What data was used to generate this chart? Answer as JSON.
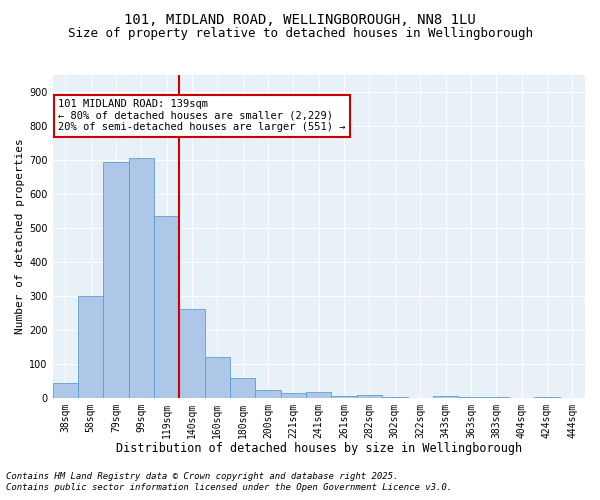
{
  "title_line1": "101, MIDLAND ROAD, WELLINGBOROUGH, NN8 1LU",
  "title_line2": "Size of property relative to detached houses in Wellingborough",
  "xlabel": "Distribution of detached houses by size in Wellingborough",
  "ylabel": "Number of detached properties",
  "categories": [
    "38sqm",
    "58sqm",
    "79sqm",
    "99sqm",
    "119sqm",
    "140sqm",
    "160sqm",
    "180sqm",
    "200sqm",
    "221sqm",
    "241sqm",
    "261sqm",
    "282sqm",
    "302sqm",
    "322sqm",
    "343sqm",
    "363sqm",
    "383sqm",
    "404sqm",
    "424sqm",
    "444sqm"
  ],
  "values": [
    42,
    300,
    695,
    705,
    535,
    260,
    120,
    58,
    22,
    13,
    16,
    5,
    8,
    2,
    0,
    5,
    1,
    1,
    0,
    1,
    0
  ],
  "bar_color": "#aec6e8",
  "bar_edgecolor": "#5a9fd4",
  "vline_color": "#cc0000",
  "annotation_text": "101 MIDLAND ROAD: 139sqm\n← 80% of detached houses are smaller (2,229)\n20% of semi-detached houses are larger (551) →",
  "annotation_box_color": "#ffffff",
  "annotation_box_edgecolor": "#cc0000",
  "ylim": [
    0,
    950
  ],
  "yticks": [
    0,
    100,
    200,
    300,
    400,
    500,
    600,
    700,
    800,
    900
  ],
  "bg_color": "#e8f0f8",
  "footer_line1": "Contains HM Land Registry data © Crown copyright and database right 2025.",
  "footer_line2": "Contains public sector information licensed under the Open Government Licence v3.0.",
  "title_fontsize": 10,
  "subtitle_fontsize": 9,
  "xlabel_fontsize": 8.5,
  "ylabel_fontsize": 8,
  "tick_fontsize": 7,
  "annotation_fontsize": 7.5,
  "footer_fontsize": 6.5
}
